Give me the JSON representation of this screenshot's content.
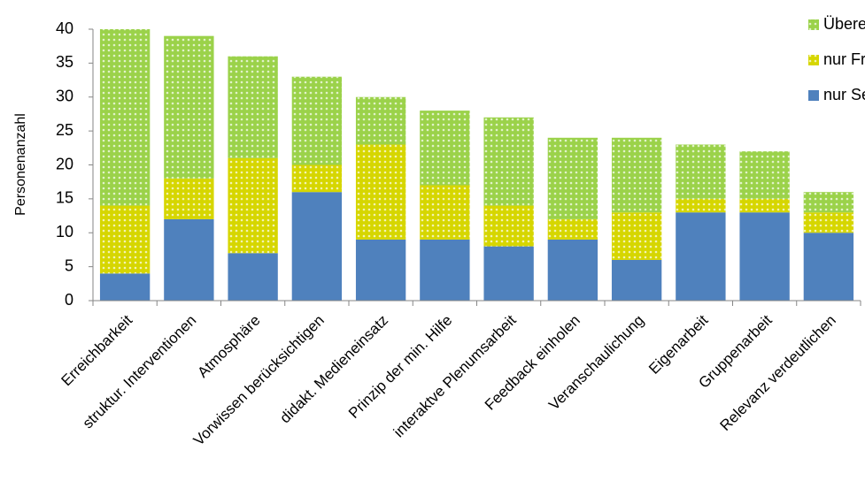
{
  "chart_data": {
    "type": "stacked_bar",
    "y_label": "Personenanzahl",
    "categories": [
      "Erreichbarkeit",
      "struktur. Interventionen",
      "Atmosphäre",
      "Vorwissen berücksichtigen",
      "didakt. Medieneinsatz",
      "Prinzip der min. Hilfe",
      "interaktve Plenumsarbeit",
      "Feedback einholen",
      "Veranschaulichung",
      "Eigenarbeit",
      "Gruppenarbeit",
      "Relevanz verdeutlichen"
    ],
    "series": [
      {
        "name": "nur Selbsteinschätzung",
        "color": "#4f81bd",
        "values": [
          4,
          12,
          7,
          16,
          9,
          9,
          8,
          9,
          6,
          13,
          13,
          10
        ]
      },
      {
        "name": "nur Fremdeinschätzung",
        "color": "#d6d600",
        "values": [
          10,
          6,
          14,
          4,
          14,
          8,
          6,
          3,
          7,
          2,
          2,
          3
        ]
      },
      {
        "name": "Übereinstimmung",
        "color": "#9bd24a",
        "values": [
          26,
          21,
          15,
          13,
          7,
          11,
          13,
          12,
          11,
          8,
          7,
          3
        ]
      }
    ],
    "ylim": [
      0,
      40
    ],
    "yticks": [
      0,
      5,
      10,
      15,
      20,
      25,
      30,
      35,
      40
    ],
    "grid": false,
    "legend": "top-right"
  }
}
